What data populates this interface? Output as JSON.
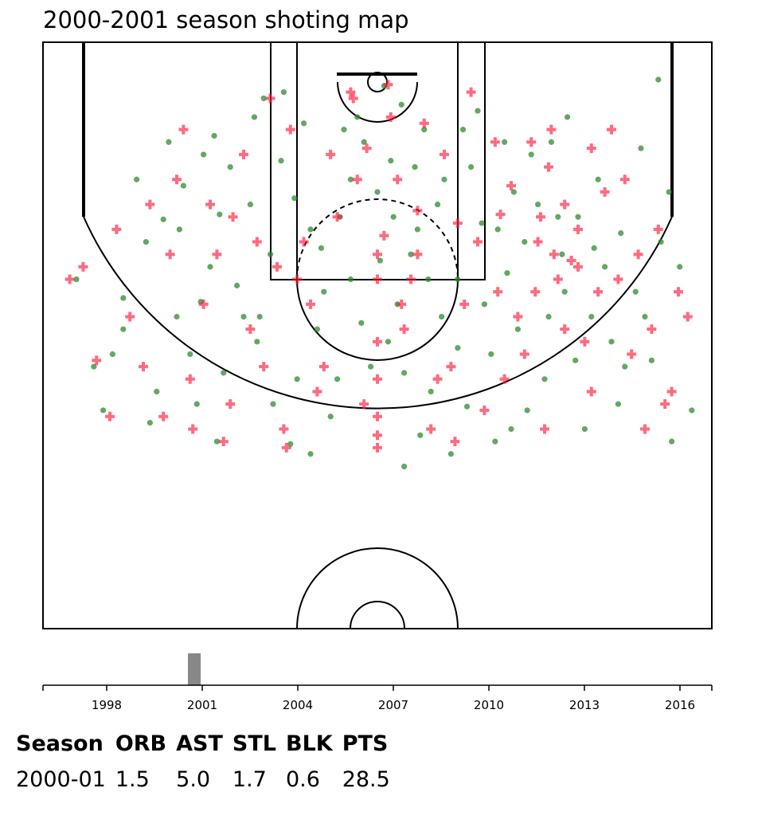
{
  "title": "2000-2001 season shoting map",
  "colors": {
    "made": "#2e8b2e",
    "missed": "#ff1a3a",
    "lines": "#000000",
    "selected_bar": "#888888",
    "axis": "#000000"
  },
  "timeline": {
    "year_min": 1996,
    "year_max": 2017,
    "tick_years": [
      1998,
      2001,
      2004,
      2007,
      2010,
      2013,
      2016
    ],
    "tick_labels": [
      "1998",
      "2001",
      "2004",
      "2007",
      "2010",
      "2013",
      "2016"
    ],
    "selected_season_start": 2000
  },
  "stats": {
    "headers": [
      "Season",
      "ORB",
      "AST",
      "STL",
      "BLK",
      "PTS"
    ],
    "values": [
      "2000-01",
      "1.5",
      "5.0",
      "1.7",
      "0.6",
      "28.5"
    ]
  },
  "chart_data": {
    "type": "scatter",
    "title": "2000-2001 season shoting map",
    "units": "court feet, hoop at (0,0), x left-right, y toward half court",
    "xlim": [
      -25,
      25
    ],
    "ylim": [
      -5,
      42
    ],
    "series": [
      {
        "marker": "circle",
        "points": [
          [
            -22.5,
            14
          ],
          [
            -21.2,
            21
          ],
          [
            -20.5,
            24.5
          ],
          [
            -19.8,
            20
          ],
          [
            -19,
            15.5
          ],
          [
            -17.3,
            11
          ],
          [
            -16,
            9.2
          ],
          [
            -14.5,
            6.5
          ],
          [
            -14,
            20
          ],
          [
            -13.5,
            24
          ],
          [
            -13,
            4
          ],
          [
            -12,
            27
          ],
          [
            -11,
            5
          ],
          [
            -10,
            17
          ],
          [
            -9,
            19
          ],
          [
            -8.5,
            -0.5
          ],
          [
            -7.2,
            4.5
          ],
          [
            -7,
            -1
          ],
          [
            -6.5,
            27.2
          ],
          [
            -5,
            10
          ],
          [
            -4,
            15
          ],
          [
            -3,
            22
          ],
          [
            -2.5,
            2
          ],
          [
            -2,
            6
          ],
          [
            -1.5,
            1
          ],
          [
            -1,
            3
          ],
          [
            0,
            7
          ],
          [
            0.5,
            -1.5
          ],
          [
            1,
            4.5
          ],
          [
            1.5,
            16
          ],
          [
            2,
            29
          ],
          [
            2.5,
            12
          ],
          [
            3,
            10
          ],
          [
            3.5,
            2
          ],
          [
            4,
            23
          ],
          [
            5,
            6
          ],
          [
            6,
            14
          ],
          [
            6.7,
            24.2
          ],
          [
            7.5,
            0.5
          ],
          [
            8,
            16
          ],
          [
            8.5,
            20
          ],
          [
            9,
            10
          ],
          [
            9.5,
            3
          ],
          [
            10,
            26
          ],
          [
            11,
            11
          ],
          [
            12,
            8
          ],
          [
            13,
            3
          ],
          [
            14,
            15
          ],
          [
            15,
            9
          ],
          [
            16,
            17
          ],
          [
            17,
            13
          ],
          [
            18.2,
            10.3
          ],
          [
            18.5,
            21
          ],
          [
            19.3,
            15
          ],
          [
            20.5,
            20.5
          ],
          [
            21,
            -2
          ],
          [
            21.8,
            7
          ],
          [
            22,
            27
          ],
          [
            22.6,
            13
          ],
          [
            23.5,
            24.5
          ],
          [
            -16.5,
            23
          ],
          [
            -15,
            17
          ],
          [
            -12.5,
            13
          ],
          [
            -11.5,
            21.5
          ],
          [
            -9.5,
            8
          ],
          [
            -8,
            12
          ],
          [
            -6,
            22
          ],
          [
            -5.5,
            1.5
          ],
          [
            -4.5,
            18
          ],
          [
            -3.5,
            25
          ],
          [
            -2,
            14
          ],
          [
            0.8,
            19
          ],
          [
            3.2,
            26.5
          ],
          [
            4.5,
            8
          ],
          [
            5.5,
            28
          ],
          [
            7,
            5
          ],
          [
            8.8,
            27
          ],
          [
            10.5,
            18
          ],
          [
            11.5,
            4
          ],
          [
            12.5,
            22
          ],
          [
            13.5,
            9
          ],
          [
            15.5,
            26
          ],
          [
            16.5,
            6
          ],
          [
            17.5,
            19
          ],
          [
            19.7,
            3.5
          ],
          [
            -18,
            6
          ],
          [
            -17,
            25.5
          ],
          [
            -14.8,
            10
          ],
          [
            -12.2,
            2.5
          ],
          [
            -10.5,
            14.5
          ],
          [
            -7.8,
            24
          ],
          [
            -6.2,
            7.5
          ],
          [
            -4.2,
            11.5
          ],
          [
            -0.5,
            21
          ],
          [
            1.2,
            9
          ],
          [
            2.8,
            5
          ],
          [
            4.8,
            17
          ],
          [
            6.4,
            2
          ],
          [
            9.7,
            13.5
          ],
          [
            12.8,
            17
          ],
          [
            14.2,
            1
          ],
          [
            16.2,
            11.5
          ],
          [
            18,
            24
          ],
          [
            20,
            17
          ],
          [
            -19,
            18
          ],
          [
            -15.6,
            3
          ],
          [
            -11.8,
            8.8
          ],
          [
            -8.8,
            17
          ],
          [
            -5,
            28
          ],
          [
            2,
            21.5
          ],
          [
            7.8,
            9.5
          ],
          [
            11.2,
            24.5
          ],
          [
            14.8,
            20.5
          ],
          [
            21.2,
            11
          ],
          [
            -2.8,
            9
          ],
          [
            0.2,
            12.5
          ],
          [
            3.8,
            14
          ],
          [
            -13.2,
            15.8
          ],
          [
            -9.2,
            1
          ],
          [
            10.2,
            7
          ],
          [
            13.8,
            12
          ],
          [
            6,
            19.5
          ],
          [
            -1.2,
            17.5
          ],
          [
            1.8,
            0
          ]
        ]
      },
      {
        "marker": "cross",
        "points": [
          [
            -22,
            13
          ],
          [
            -21,
            20.5
          ],
          [
            -20,
            25
          ],
          [
            -18.5,
            17
          ],
          [
            -17,
            8
          ],
          [
            -15.5,
            12
          ],
          [
            -15,
            6
          ],
          [
            -14,
            22
          ],
          [
            -13,
            16
          ],
          [
            -12.5,
            8
          ],
          [
            -11,
            24
          ],
          [
            -10,
            4
          ],
          [
            -9.5,
            18
          ],
          [
            -9,
            11
          ],
          [
            -8,
            -0.5
          ],
          [
            -7,
            26
          ],
          [
            -6.5,
            2
          ],
          [
            -5,
            16
          ],
          [
            -4,
            21
          ],
          [
            -3,
            9
          ],
          [
            -2,
            -1
          ],
          [
            -1,
            24
          ],
          [
            0,
            14
          ],
          [
            0,
            25
          ],
          [
            0,
            27.5
          ],
          [
            0.5,
            10.5
          ],
          [
            1,
            1
          ],
          [
            1.5,
            6
          ],
          [
            2,
            18
          ],
          [
            3,
            12
          ],
          [
            4,
            26
          ],
          [
            5,
            4
          ],
          [
            5.5,
            21
          ],
          [
            6,
            9.5
          ],
          [
            7,
            -1
          ],
          [
            8,
            24.5
          ],
          [
            9,
            15
          ],
          [
            10,
            6.5
          ],
          [
            11,
            20
          ],
          [
            12,
            11
          ],
          [
            12.5,
            26
          ],
          [
            13,
            2
          ],
          [
            14,
            18
          ],
          [
            15,
            10
          ],
          [
            16,
            23
          ],
          [
            17,
            7
          ],
          [
            18,
            14
          ],
          [
            19,
            20
          ],
          [
            20,
            26
          ],
          [
            21,
            10
          ],
          [
            22,
            23
          ],
          [
            22.5,
            15
          ],
          [
            23.2,
            17
          ],
          [
            -23,
            14
          ],
          [
            -16,
            25
          ],
          [
            -12,
            12
          ],
          [
            -8.5,
            21
          ],
          [
            -6,
            14
          ],
          [
            -3.5,
            4
          ],
          [
            0,
            19
          ],
          [
            0,
            22
          ],
          [
            3.5,
            1.5
          ],
          [
            6.5,
            16
          ],
          [
            9.5,
            22
          ],
          [
            11.5,
            3
          ],
          [
            13.5,
            14
          ],
          [
            15.5,
            19
          ],
          [
            17.5,
            2
          ],
          [
            19.5,
            12
          ],
          [
            21.5,
            24
          ],
          [
            -19.5,
            10
          ],
          [
            -14.5,
            2
          ],
          [
            -11.5,
            27
          ],
          [
            -7.5,
            13
          ],
          [
            -4.5,
            23
          ],
          [
            -1.5,
            6
          ],
          [
            2.5,
            14
          ],
          [
            4.5,
            22
          ],
          [
            7.5,
            11
          ],
          [
            10.5,
            17
          ],
          [
            12.8,
            5
          ],
          [
            14.5,
            12.5
          ],
          [
            16.5,
            15
          ],
          [
            18.5,
            6
          ],
          [
            20.5,
            18
          ],
          [
            -17.5,
            21
          ],
          [
            -10.8,
            9
          ],
          [
            -5.5,
            11
          ],
          [
            1.8,
            16
          ],
          [
            8.8,
            3
          ],
          [
            12.2,
            9
          ],
          [
            14,
            8
          ],
          [
            13.2,
            12
          ],
          [
            15,
            13
          ],
          [
            -1.8,
            -0.5
          ],
          [
            0,
            12
          ],
          [
            0,
            26.5
          ],
          [
            -0.8,
            3.5
          ],
          [
            0.8,
            -1.6
          ],
          [
            3,
            8.5
          ],
          [
            -6.8,
            27.5
          ],
          [
            11.8,
            15
          ],
          [
            16,
            3.5
          ],
          [
            -13.8,
            26
          ],
          [
            5.8,
            27
          ],
          [
            9.2,
            8.8
          ]
        ]
      }
    ]
  }
}
